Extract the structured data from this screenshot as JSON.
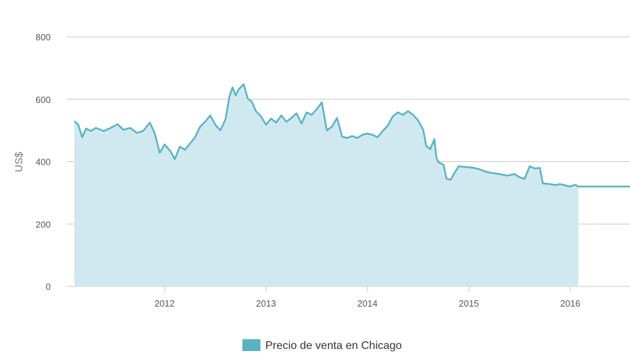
{
  "chart_data": {
    "type": "area",
    "title": "",
    "xlabel": "",
    "ylabel": "US$",
    "ylim": [
      0,
      800
    ],
    "xlim": [
      2011.08,
      2016.62
    ],
    "y_ticks": [
      "0",
      "200",
      "400",
      "600",
      "800"
    ],
    "x_ticks": [
      "2012",
      "2013",
      "2014",
      "2015",
      "2016"
    ],
    "grid": "horizontal",
    "legend_position": "bottom-center",
    "series": [
      {
        "name": "Precio de venta en Chicago",
        "color": "#5ab3c4",
        "fill": "#d0e9f0",
        "points": [
          [
            2011.08,
            530
          ],
          [
            2011.12,
            518
          ],
          [
            2011.16,
            478
          ],
          [
            2011.2,
            506
          ],
          [
            2011.25,
            498
          ],
          [
            2011.3,
            508
          ],
          [
            2011.38,
            498
          ],
          [
            2011.45,
            508
          ],
          [
            2011.52,
            520
          ],
          [
            2011.58,
            502
          ],
          [
            2011.65,
            508
          ],
          [
            2011.72,
            492
          ],
          [
            2011.78,
            498
          ],
          [
            2011.85,
            525
          ],
          [
            2011.9,
            490
          ],
          [
            2011.95,
            428
          ],
          [
            2012.0,
            455
          ],
          [
            2012.06,
            432
          ],
          [
            2012.1,
            408
          ],
          [
            2012.15,
            448
          ],
          [
            2012.2,
            438
          ],
          [
            2012.25,
            458
          ],
          [
            2012.3,
            478
          ],
          [
            2012.35,
            512
          ],
          [
            2012.4,
            528
          ],
          [
            2012.45,
            548
          ],
          [
            2012.5,
            518
          ],
          [
            2012.55,
            500
          ],
          [
            2012.6,
            535
          ],
          [
            2012.64,
            610
          ],
          [
            2012.67,
            638
          ],
          [
            2012.7,
            612
          ],
          [
            2012.73,
            632
          ],
          [
            2012.78,
            648
          ],
          [
            2012.82,
            602
          ],
          [
            2012.86,
            592
          ],
          [
            2012.9,
            562
          ],
          [
            2012.95,
            545
          ],
          [
            2013.0,
            518
          ],
          [
            2013.05,
            538
          ],
          [
            2013.1,
            525
          ],
          [
            2013.15,
            548
          ],
          [
            2013.2,
            528
          ],
          [
            2013.25,
            540
          ],
          [
            2013.3,
            555
          ],
          [
            2013.35,
            522
          ],
          [
            2013.4,
            558
          ],
          [
            2013.45,
            550
          ],
          [
            2013.5,
            568
          ],
          [
            2013.55,
            590
          ],
          [
            2013.6,
            500
          ],
          [
            2013.65,
            512
          ],
          [
            2013.7,
            540
          ],
          [
            2013.75,
            480
          ],
          [
            2013.8,
            476
          ],
          [
            2013.85,
            482
          ],
          [
            2013.9,
            476
          ],
          [
            2013.95,
            486
          ],
          [
            2014.0,
            490
          ],
          [
            2014.05,
            486
          ],
          [
            2014.1,
            478
          ],
          [
            2014.15,
            498
          ],
          [
            2014.2,
            515
          ],
          [
            2014.25,
            545
          ],
          [
            2014.3,
            558
          ],
          [
            2014.35,
            550
          ],
          [
            2014.4,
            562
          ],
          [
            2014.45,
            550
          ],
          [
            2014.5,
            532
          ],
          [
            2014.55,
            502
          ],
          [
            2014.58,
            450
          ],
          [
            2014.62,
            440
          ],
          [
            2014.66,
            472
          ],
          [
            2014.68,
            412
          ],
          [
            2014.7,
            398
          ],
          [
            2014.75,
            390
          ],
          [
            2014.78,
            345
          ],
          [
            2014.82,
            342
          ],
          [
            2014.86,
            365
          ],
          [
            2014.9,
            385
          ],
          [
            2015.0,
            382
          ],
          [
            2015.05,
            380
          ],
          [
            2015.1,
            376
          ],
          [
            2015.15,
            370
          ],
          [
            2015.2,
            365
          ],
          [
            2015.3,
            360
          ],
          [
            2015.38,
            355
          ],
          [
            2015.45,
            360
          ],
          [
            2015.5,
            350
          ],
          [
            2015.55,
            345
          ],
          [
            2015.6,
            385
          ],
          [
            2015.65,
            378
          ],
          [
            2015.7,
            380
          ],
          [
            2015.73,
            330
          ],
          [
            2015.8,
            328
          ],
          [
            2015.85,
            325
          ],
          [
            2015.9,
            328
          ],
          [
            2016.0,
            320
          ],
          [
            2016.05,
            326
          ],
          [
            2016.08,
            320
          ],
          [
            2016.2,
            320
          ],
          [
            2016.4,
            320
          ],
          [
            2016.62,
            320
          ]
        ]
      }
    ]
  }
}
